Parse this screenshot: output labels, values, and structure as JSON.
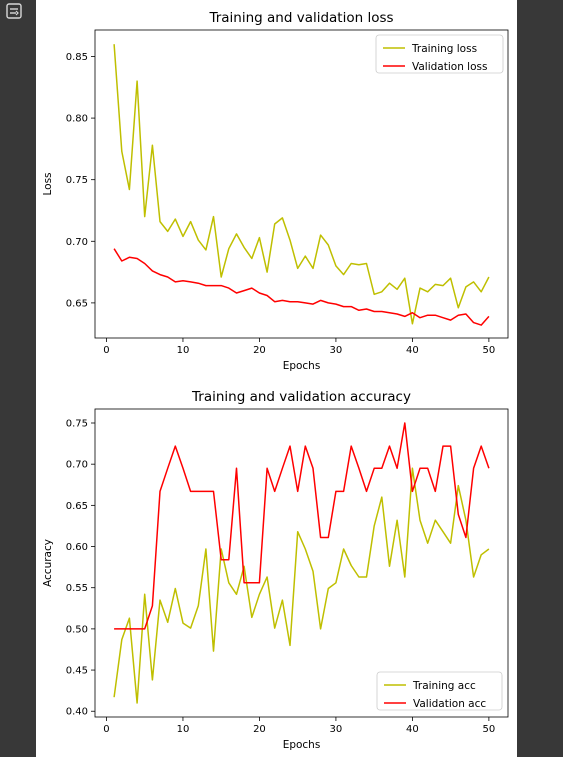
{
  "toolbar": {
    "output_icon": "output-toggle-icon"
  },
  "colors": {
    "training": "#bfbf00",
    "validation": "#ff0000",
    "page_bg": "#383838",
    "figure_bg": "#ffffff"
  },
  "chart_data": [
    {
      "type": "line",
      "title": "Training and validation loss",
      "xlabel": "Epochs",
      "ylabel": "Loss",
      "xlim": [
        -1.5,
        52.5
      ],
      "ylim": [
        0.6215,
        0.8715
      ],
      "xticks": [
        0,
        10,
        20,
        30,
        40,
        50
      ],
      "yticks": [
        0.65,
        0.7,
        0.75,
        0.8,
        0.85
      ],
      "ytick_labels": [
        "0.65",
        "0.70",
        "0.75",
        "0.80",
        "0.85"
      ],
      "legend": "top-right",
      "grid": false,
      "x": [
        1,
        2,
        3,
        4,
        5,
        6,
        7,
        8,
        9,
        10,
        11,
        12,
        13,
        14,
        15,
        16,
        17,
        18,
        19,
        20,
        21,
        22,
        23,
        24,
        25,
        26,
        27,
        28,
        29,
        30,
        31,
        32,
        33,
        34,
        35,
        36,
        37,
        38,
        39,
        40,
        41,
        42,
        43,
        44,
        45,
        46,
        47,
        48,
        49,
        50
      ],
      "series": [
        {
          "name": "Training loss",
          "color": "#bfbf00",
          "values": [
            0.86,
            0.773,
            0.742,
            0.83,
            0.72,
            0.778,
            0.716,
            0.708,
            0.718,
            0.704,
            0.716,
            0.701,
            0.693,
            0.72,
            0.671,
            0.694,
            0.706,
            0.695,
            0.686,
            0.703,
            0.675,
            0.714,
            0.719,
            0.701,
            0.678,
            0.688,
            0.678,
            0.705,
            0.697,
            0.68,
            0.673,
            0.682,
            0.681,
            0.682,
            0.657,
            0.659,
            0.666,
            0.661,
            0.67,
            0.633,
            0.662,
            0.659,
            0.665,
            0.664,
            0.67,
            0.646,
            0.663,
            0.667,
            0.659,
            0.671
          ]
        },
        {
          "name": "Validation loss",
          "color": "#ff0000",
          "values": [
            0.694,
            0.684,
            0.687,
            0.686,
            0.682,
            0.676,
            0.673,
            0.671,
            0.667,
            0.668,
            0.667,
            0.666,
            0.664,
            0.664,
            0.664,
            0.662,
            0.658,
            0.66,
            0.662,
            0.658,
            0.656,
            0.651,
            0.652,
            0.651,
            0.651,
            0.65,
            0.649,
            0.652,
            0.65,
            0.649,
            0.647,
            0.647,
            0.644,
            0.645,
            0.643,
            0.643,
            0.642,
            0.641,
            0.639,
            0.642,
            0.638,
            0.64,
            0.64,
            0.638,
            0.636,
            0.64,
            0.641,
            0.634,
            0.632,
            0.639
          ]
        }
      ]
    },
    {
      "type": "line",
      "title": "Training and validation accuracy",
      "xlabel": "Epochs",
      "ylabel": "Accuracy",
      "xlim": [
        -1.5,
        52.5
      ],
      "ylim": [
        0.393,
        0.767
      ],
      "xticks": [
        0,
        10,
        20,
        30,
        40,
        50
      ],
      "yticks": [
        0.4,
        0.45,
        0.5,
        0.55,
        0.6,
        0.65,
        0.7,
        0.75
      ],
      "ytick_labels": [
        "0.40",
        "0.45",
        "0.50",
        "0.55",
        "0.60",
        "0.65",
        "0.70",
        "0.75"
      ],
      "legend": "bottom-right",
      "grid": false,
      "x": [
        1,
        2,
        3,
        4,
        5,
        6,
        7,
        8,
        9,
        10,
        11,
        12,
        13,
        14,
        15,
        16,
        17,
        18,
        19,
        20,
        21,
        22,
        23,
        24,
        25,
        26,
        27,
        28,
        29,
        30,
        31,
        32,
        33,
        34,
        35,
        36,
        37,
        38,
        39,
        40,
        41,
        42,
        43,
        44,
        45,
        46,
        47,
        48,
        49,
        50
      ],
      "series": [
        {
          "name": "Training acc",
          "color": "#bfbf00",
          "values": [
            0.417,
            0.487,
            0.513,
            0.41,
            0.542,
            0.438,
            0.535,
            0.508,
            0.549,
            0.507,
            0.501,
            0.528,
            0.597,
            0.473,
            0.597,
            0.556,
            0.542,
            0.576,
            0.514,
            0.542,
            0.563,
            0.501,
            0.535,
            0.48,
            0.618,
            0.597,
            0.57,
            0.5,
            0.549,
            0.556,
            0.597,
            0.577,
            0.563,
            0.563,
            0.625,
            0.66,
            0.576,
            0.632,
            0.563,
            0.695,
            0.632,
            0.604,
            0.632,
            0.618,
            0.604,
            0.674,
            0.632,
            0.563,
            0.59,
            0.597
          ]
        },
        {
          "name": "Validation acc",
          "color": "#ff0000",
          "values": [
            0.5,
            0.5,
            0.5,
            0.5,
            0.5,
            0.528,
            0.667,
            0.695,
            0.722,
            0.695,
            0.667,
            0.667,
            0.667,
            0.667,
            0.584,
            0.584,
            0.695,
            0.556,
            0.556,
            0.556,
            0.695,
            0.667,
            0.695,
            0.722,
            0.667,
            0.722,
            0.695,
            0.611,
            0.611,
            0.667,
            0.667,
            0.722,
            0.695,
            0.667,
            0.695,
            0.695,
            0.722,
            0.695,
            0.75,
            0.667,
            0.695,
            0.695,
            0.667,
            0.722,
            0.722,
            0.639,
            0.611,
            0.695,
            0.722,
            0.695
          ]
        }
      ]
    }
  ]
}
